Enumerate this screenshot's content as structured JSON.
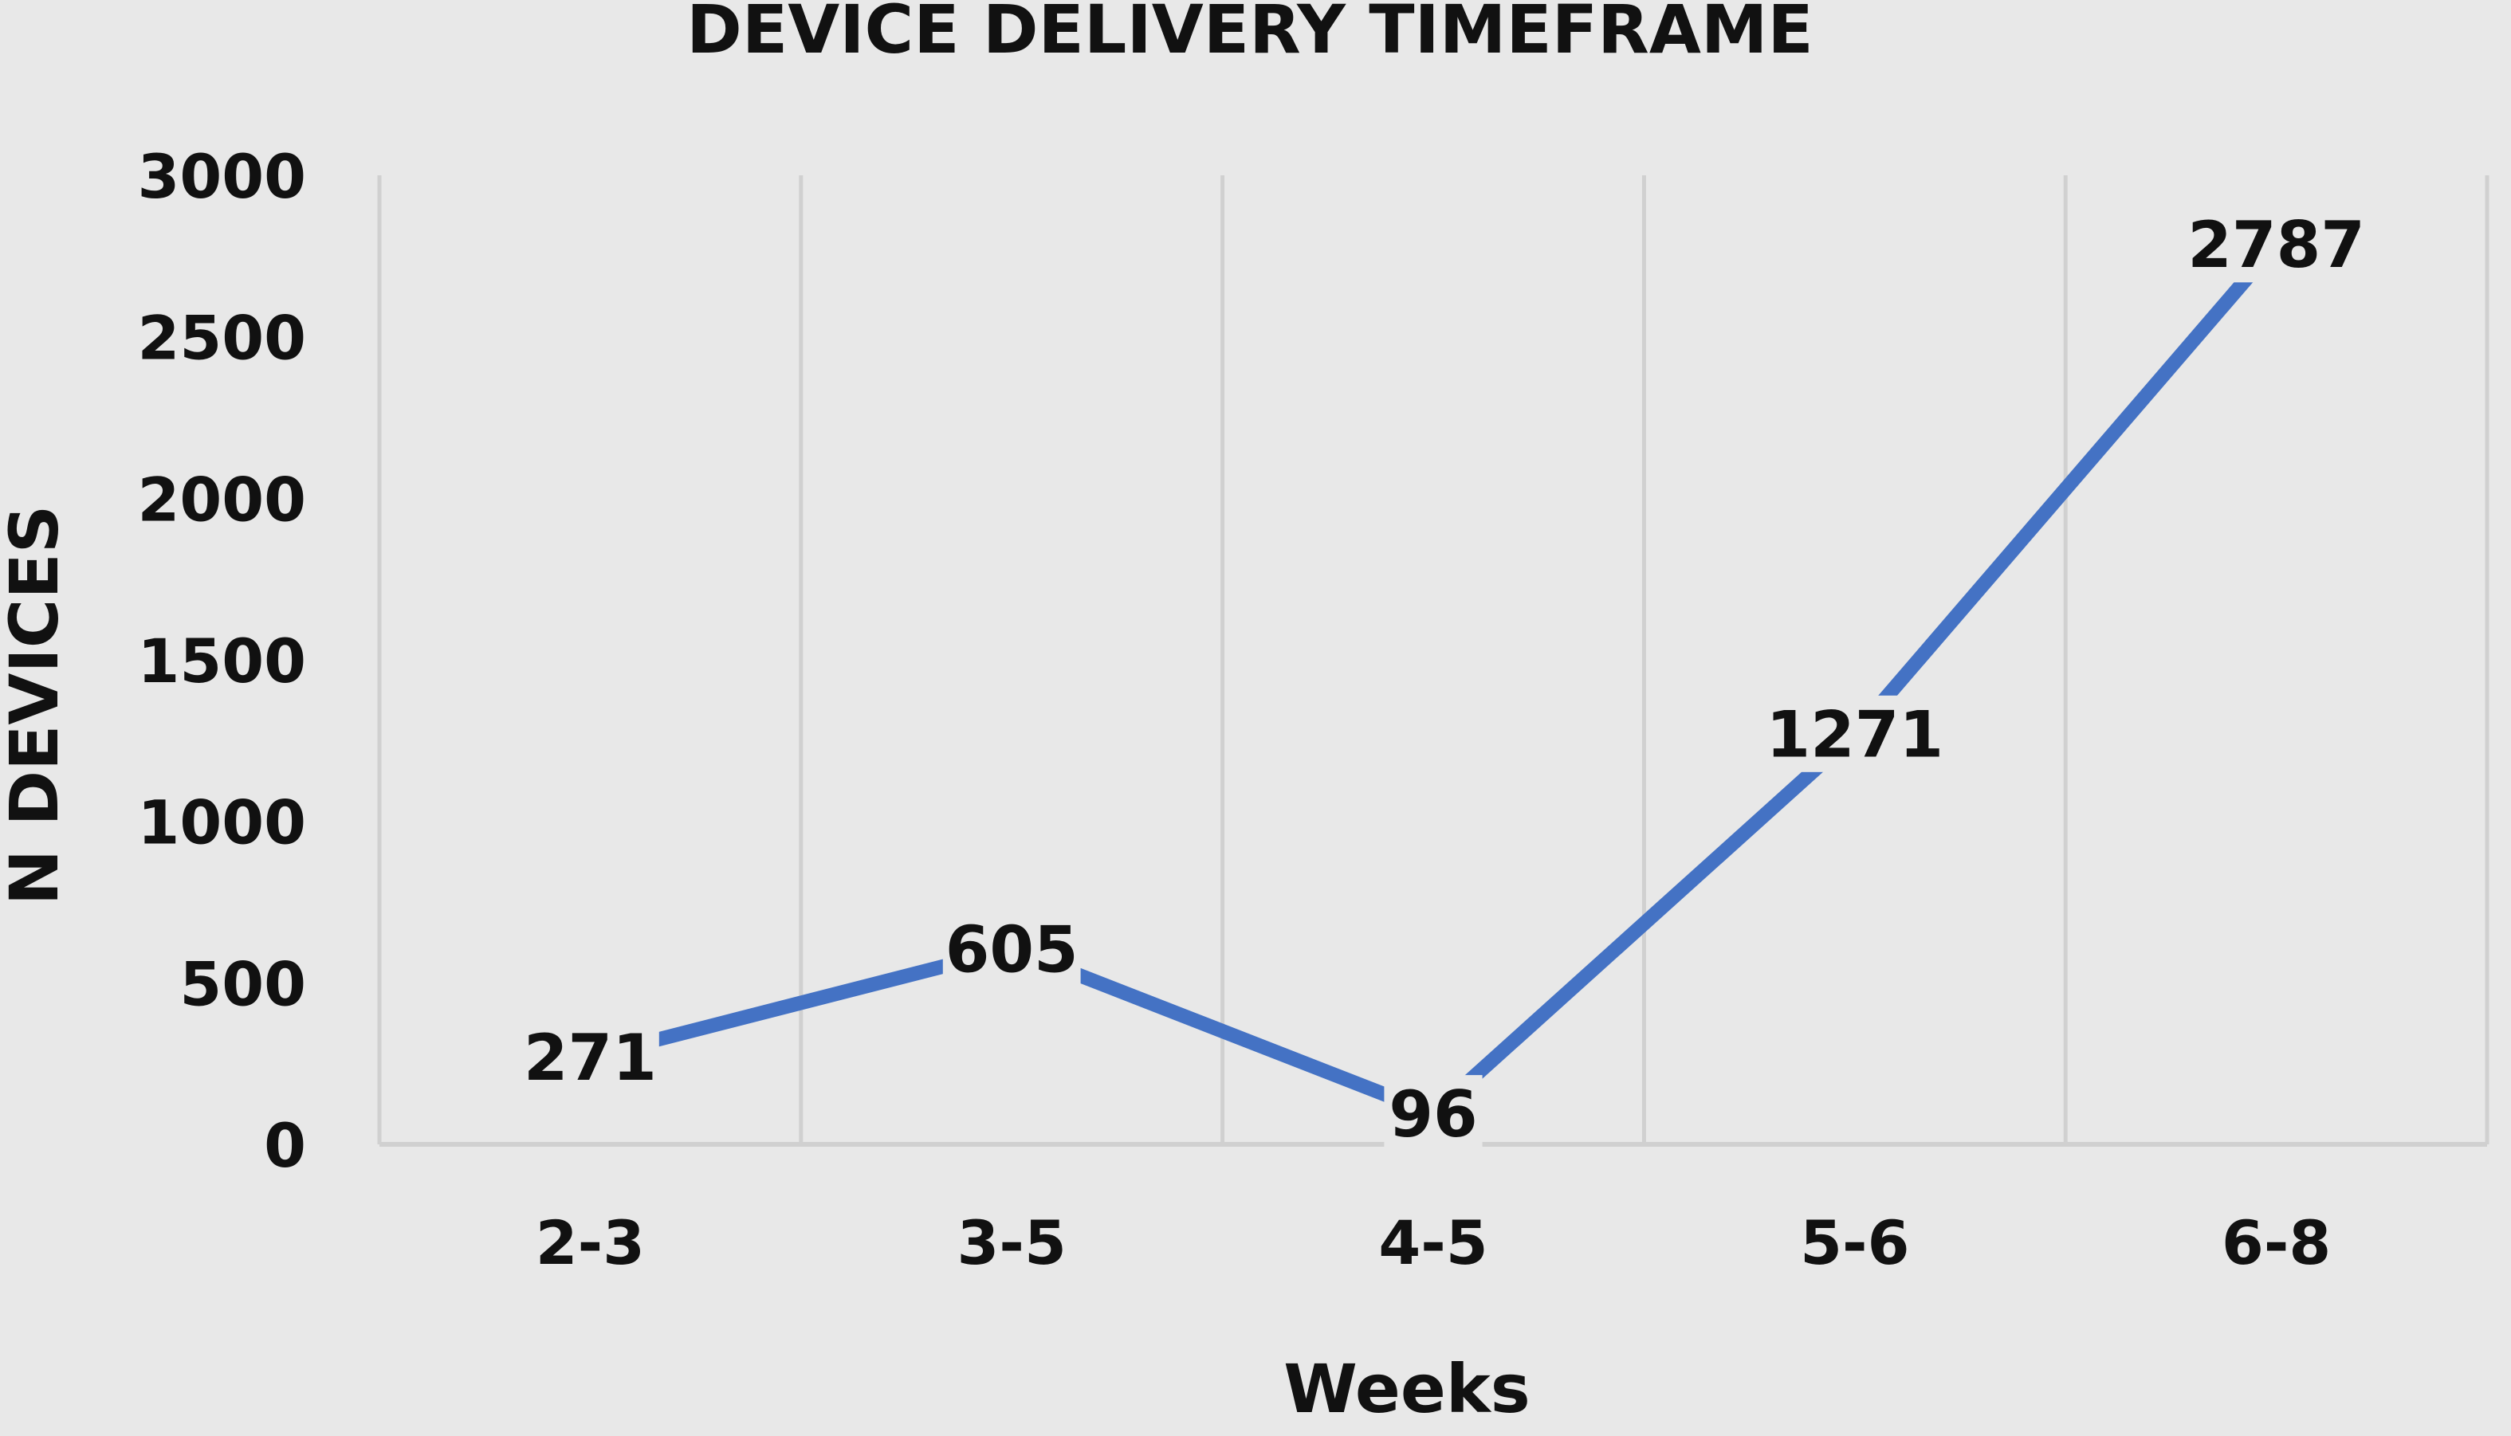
{
  "chart_data": {
    "type": "line",
    "title": "DEVICE DELIVERY TIMEFRAME",
    "xlabel": "Weeks",
    "ylabel": "N DEVICES",
    "categories": [
      "2-3",
      "3-5",
      "4-5",
      "5-6",
      "6-8"
    ],
    "series": [
      {
        "values": [
          271,
          605,
          96,
          1271,
          2787
        ],
        "color": "#4472c4"
      }
    ],
    "data_labels": [
      "271",
      "605",
      "96",
      "1271",
      "2787"
    ],
    "ylim": [
      0,
      3000
    ],
    "yticks": [
      "0",
      "500",
      "1000",
      "1500",
      "2000",
      "2500",
      "3000"
    ],
    "grid": "vertical",
    "legend": "none"
  }
}
